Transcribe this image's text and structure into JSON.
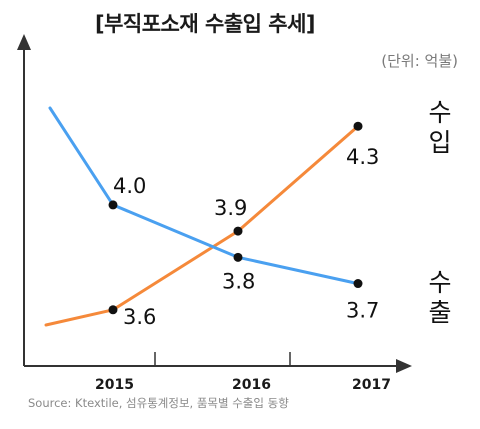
{
  "title": "[부직포소재 수출입 추세]",
  "unit": "(단위: 억불)",
  "source": "Source: Ktextile, 섬유통계정보, 품목별 수출입 동향",
  "chart_data": {
    "type": "line",
    "title": "[부직포소재 수출입 추세]",
    "unit": "(단위: 억불)",
    "categories": [
      "2015",
      "2016",
      "2017"
    ],
    "ylim": [
      3.5,
      4.4
    ],
    "grid": false,
    "series": [
      {
        "name": "수입",
        "values": [
          3.6,
          3.9,
          4.3
        ],
        "color": "#f5893a"
      },
      {
        "name": "수출",
        "values": [
          4.0,
          3.8,
          3.7
        ],
        "color": "#4aa0f0"
      }
    ],
    "data_labels": [
      "3.6",
      "3.9",
      "4.3",
      "4.0",
      "3.8",
      "3.7"
    ]
  }
}
